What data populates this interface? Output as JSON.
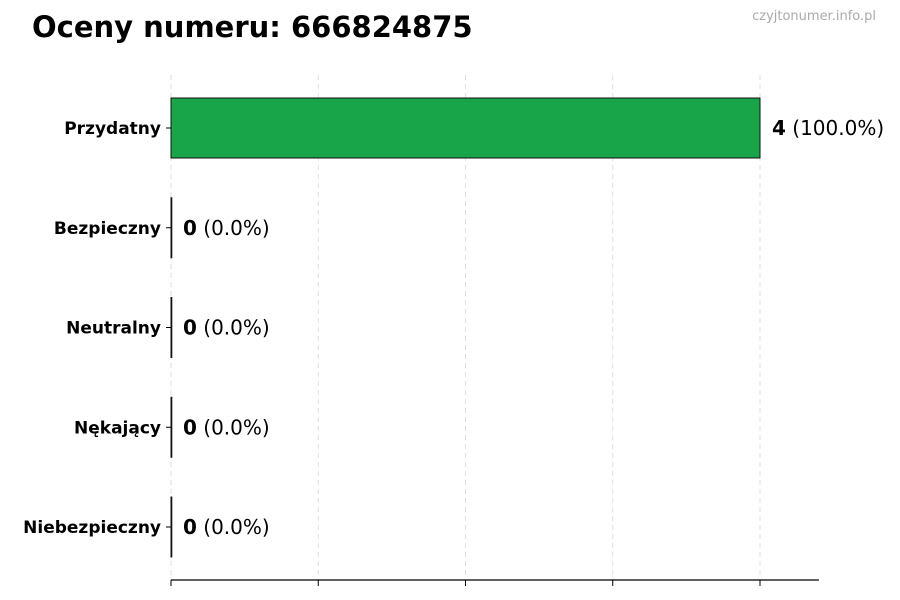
{
  "chart_data": {
    "type": "bar",
    "orientation": "horizontal",
    "title": "Oceny numeru: 666824875",
    "watermark": "czyjtonumer.info.pl",
    "categories": [
      "Przydatny",
      "Bezpieczny",
      "Neutralny",
      "Nękający",
      "Niebezpieczny"
    ],
    "values": [
      4,
      0,
      0,
      0,
      0
    ],
    "data_labels": [
      {
        "count": "4",
        "pct": "(100.0%)"
      },
      {
        "count": "0",
        "pct": "(0.0%)"
      },
      {
        "count": "0",
        "pct": "(0.0%)"
      },
      {
        "count": "0",
        "pct": "(0.0%)"
      },
      {
        "count": "0",
        "pct": "(0.0%)"
      }
    ],
    "colors": [
      "#18a549",
      "#2e7d32",
      "#9e9e9e",
      "#f57c00",
      "#d32f2f"
    ],
    "xlim": [
      0,
      4.4
    ],
    "xticks": [
      0,
      1,
      2,
      3,
      4
    ],
    "xtick_labels_shown": false,
    "grid": "x-dashed",
    "xlabel": "",
    "ylabel": ""
  }
}
